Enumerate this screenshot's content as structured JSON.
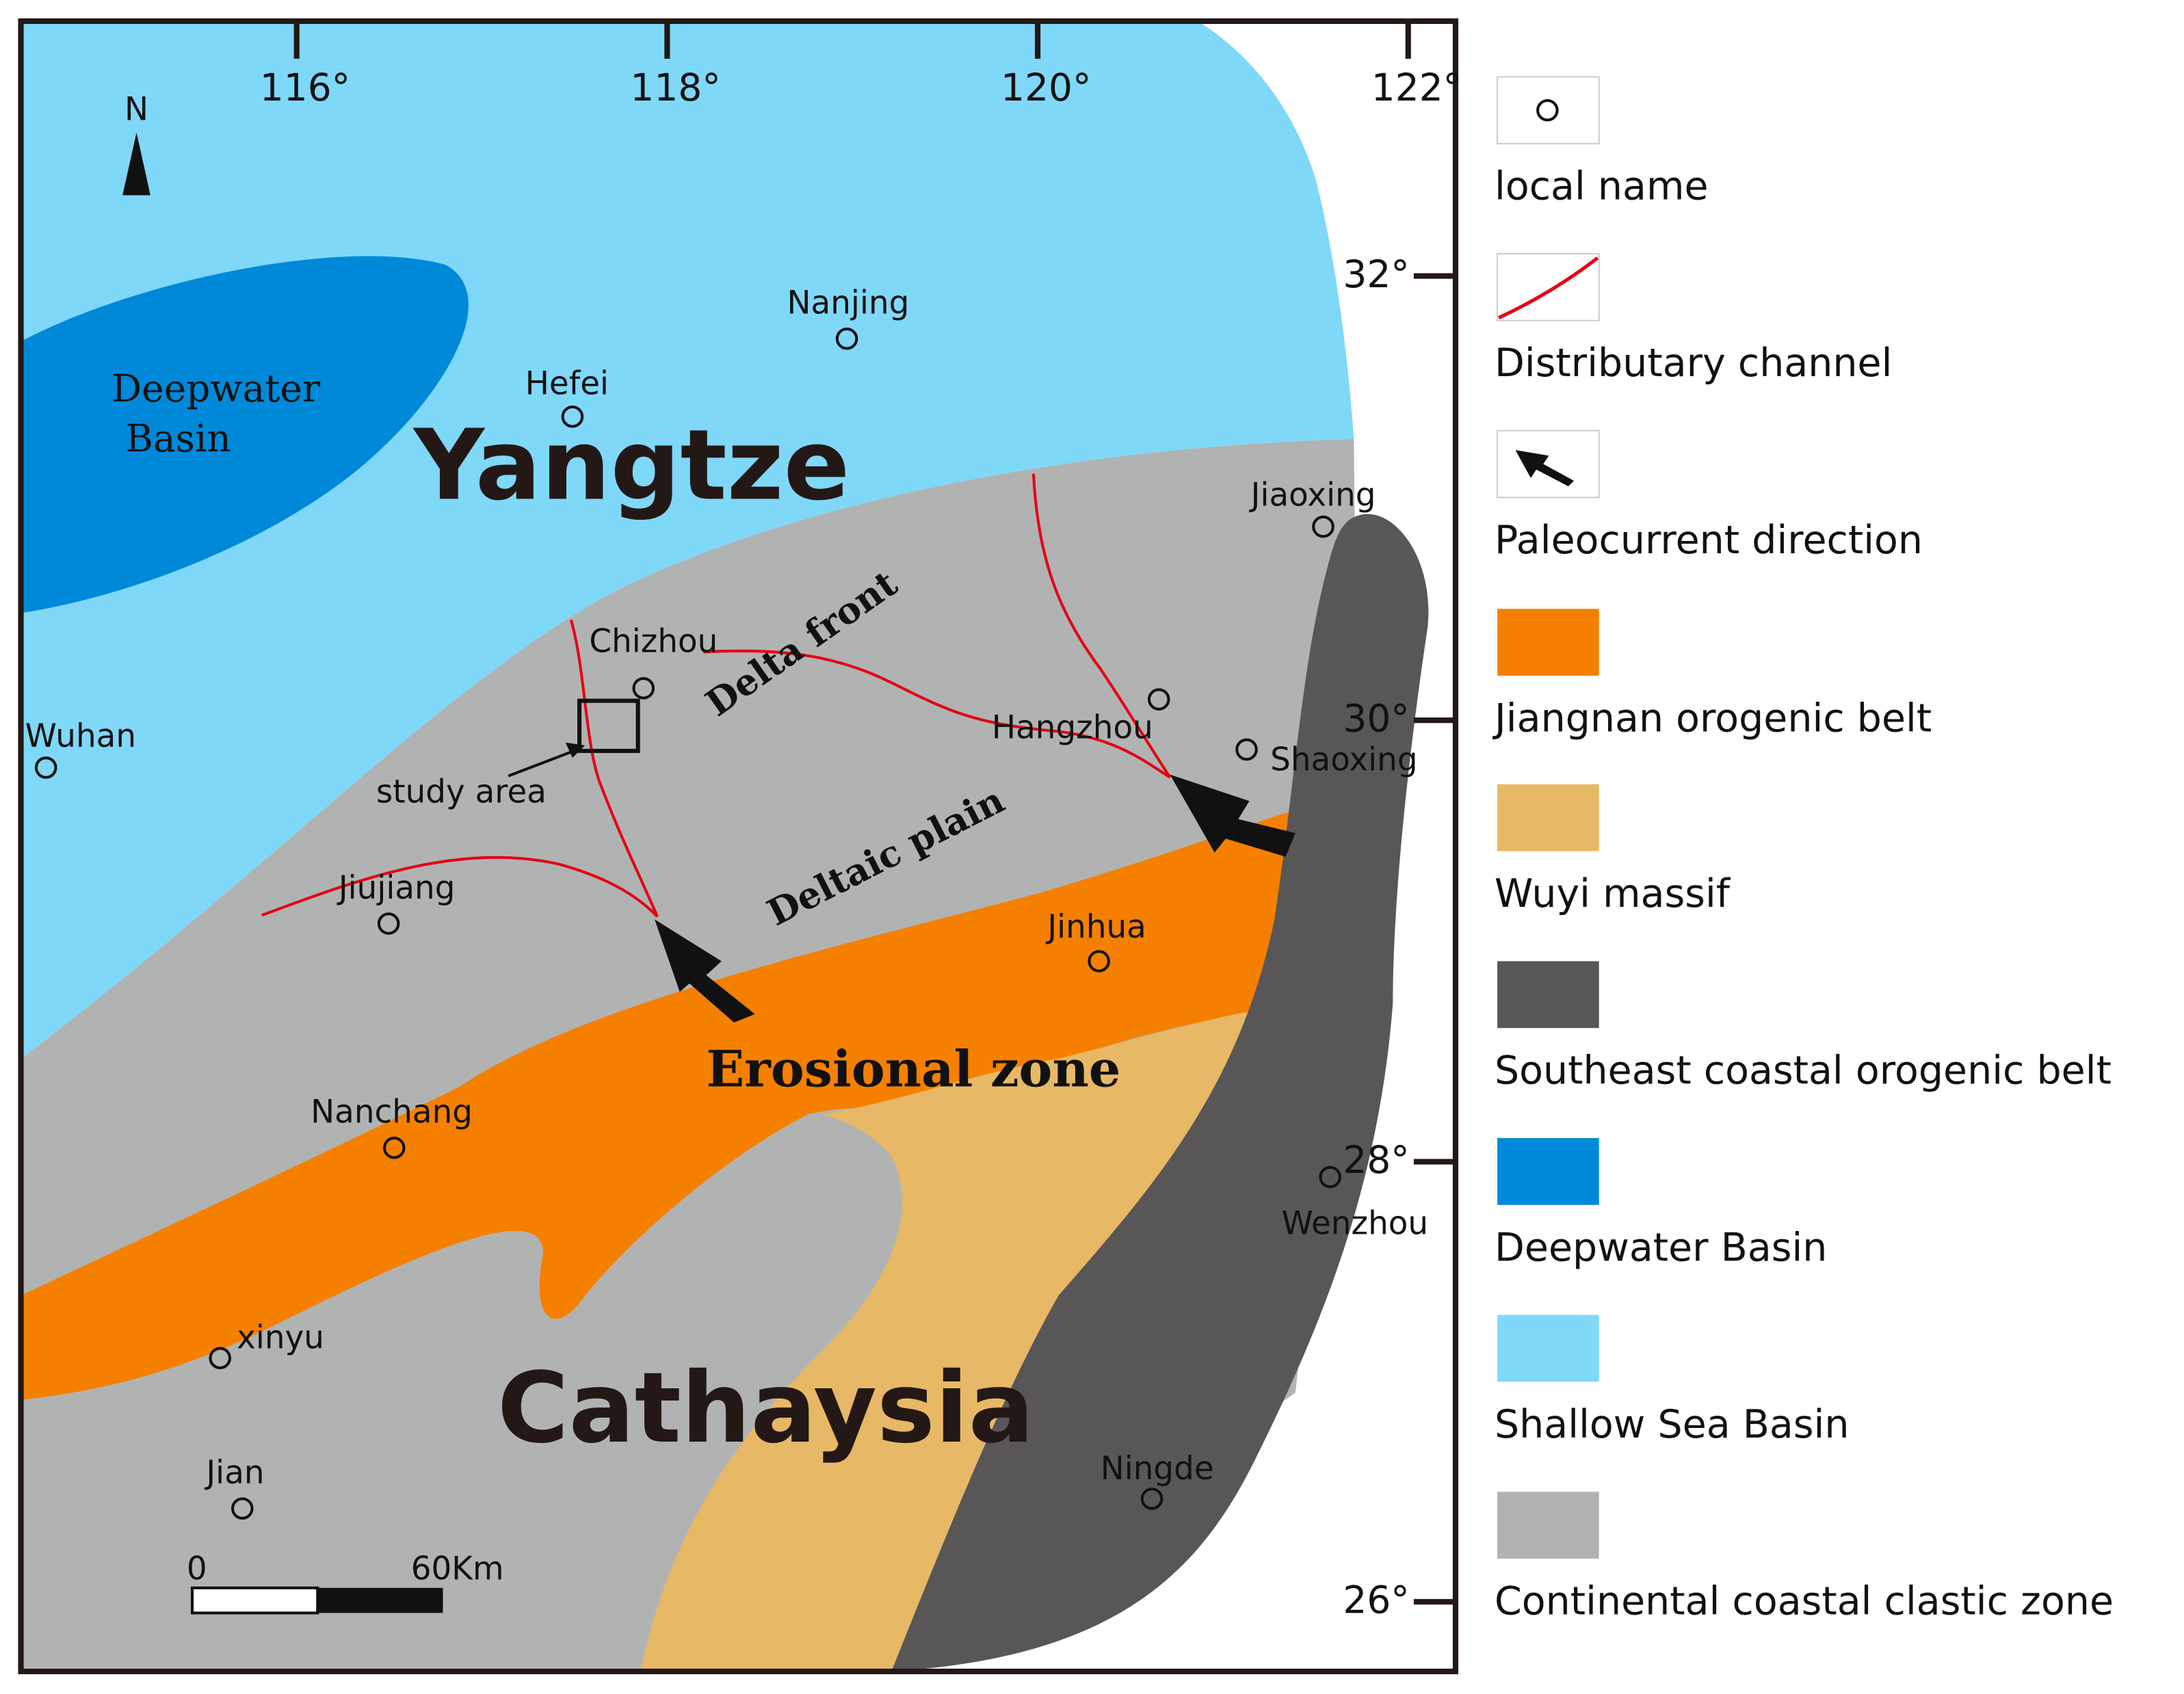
{
  "map": {
    "north": "N",
    "longitudes": [
      "116°",
      "118°",
      "120°",
      "122°"
    ],
    "latitudes": [
      "32°",
      "30°",
      "28°",
      "26°"
    ],
    "regions": [
      "Yangtze",
      "Cathaysia"
    ],
    "deepwater_label": [
      "Deepwater",
      "Basin"
    ],
    "zones": [
      "Delta front",
      "Deltaic plain",
      "Erosional zone"
    ],
    "cities": [
      "Nanjing",
      "Hefei",
      "Jiaoxing",
      "Chizhou",
      "Wuhan",
      "Hangzhou",
      "Shaoxing",
      "Jiujiang",
      "Jinhua",
      "Nanchang",
      "Wenzhou",
      "xinyu",
      "Jian",
      "Ningde"
    ],
    "study_area": "study area",
    "scale": [
      "0",
      "60Km"
    ]
  },
  "legend": [
    "local name",
    "Distributary channel",
    "Paleocurrent direction",
    "Jiangnan orogenic belt",
    "Wuyi massif",
    "Southeast coastal orogenic belt",
    "Deepwater Basin",
    "Shallow Sea Basin",
    "Continental coastal clastic zone"
  ]
}
